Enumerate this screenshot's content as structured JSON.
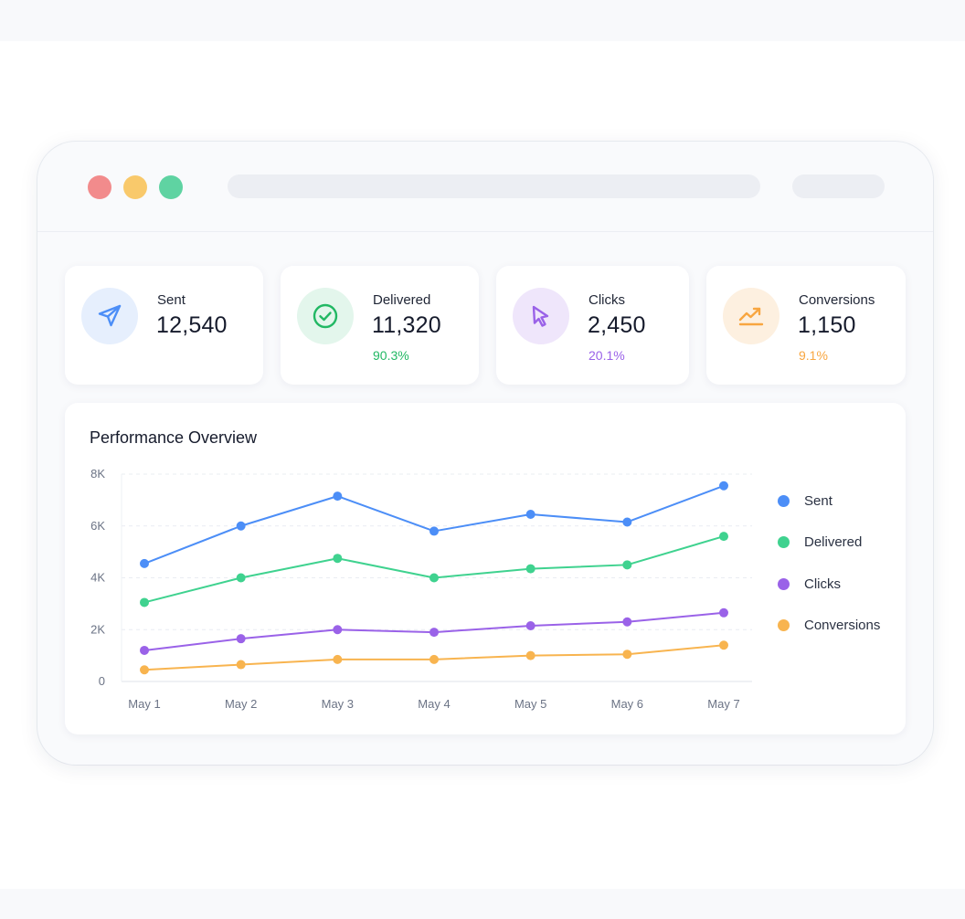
{
  "colors": {
    "sent": "#4c8ef7",
    "delivered": "#3fd28f",
    "clicks": "#9a62e8",
    "conversions": "#f8b44f"
  },
  "stats": [
    {
      "label": "Sent",
      "value": "12,540",
      "pct": "",
      "icon": "paper-plane-icon"
    },
    {
      "label": "Delivered",
      "value": "11,320",
      "pct": "90.3%",
      "icon": "check-circle-icon"
    },
    {
      "label": "Clicks",
      "value": "2,450",
      "pct": "20.1%",
      "icon": "cursor-arrow-icon"
    },
    {
      "label": "Conversions",
      "value": "1,150",
      "pct": "9.1%",
      "icon": "trending-up-icon"
    }
  ],
  "chart_data": {
    "type": "line",
    "title": "Performance Overview",
    "categories": [
      "May 1",
      "May 2",
      "May 3",
      "May 4",
      "May 5",
      "May 6",
      "May 7"
    ],
    "y_ticks": [
      "0",
      "2K",
      "4K",
      "6K",
      "8K"
    ],
    "ylim": [
      0,
      8000
    ],
    "grid": true,
    "legend_position": "right",
    "series": [
      {
        "name": "Sent",
        "values": [
          4550,
          6000,
          7150,
          5800,
          6450,
          6150,
          7550
        ]
      },
      {
        "name": "Delivered",
        "values": [
          3050,
          4000,
          4750,
          4000,
          4350,
          4500,
          5600
        ]
      },
      {
        "name": "Clicks",
        "values": [
          1200,
          1650,
          2000,
          1900,
          2150,
          2300,
          2650
        ]
      },
      {
        "name": "Conversions",
        "values": [
          450,
          650,
          850,
          850,
          1000,
          1050,
          1400
        ]
      }
    ]
  }
}
